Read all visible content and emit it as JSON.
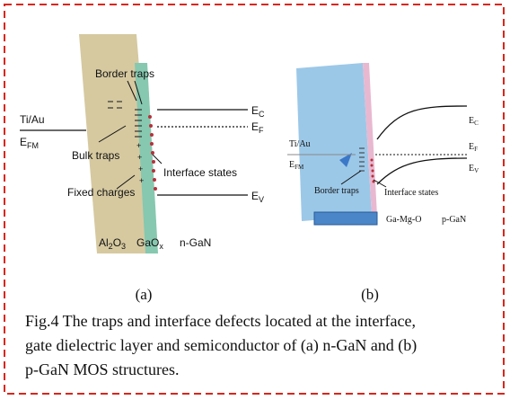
{
  "panel_a": {
    "border_traps": "Border traps",
    "ti_au": "Ti/Au",
    "e_fm": [
      "E",
      "FM"
    ],
    "bulk_traps": "Bulk traps",
    "e_c": [
      "E",
      "C"
    ],
    "e_f": [
      "E",
      "F"
    ],
    "interface_states": "Interface states",
    "fixed_charges": "Fixed charges",
    "e_v": [
      "E",
      "V"
    ],
    "al2o3": [
      "Al",
      "2",
      "O",
      "3"
    ],
    "gaox": [
      "GaO",
      "x"
    ],
    "n_gan": "n-GaN",
    "label": "(a)"
  },
  "panel_b": {
    "e_c": [
      "E",
      "C"
    ],
    "ti_au": "Ti/Au",
    "e_f": [
      "E",
      "F"
    ],
    "e_fm": [
      "E",
      "FM"
    ],
    "e_v": [
      "E",
      "V"
    ],
    "border_traps": "Border traps",
    "interface_states": "Interface states",
    "ga_mg_o": "Ga-Mg-O",
    "p_gan": "p-GaN",
    "label": "(b)"
  },
  "caption": [
    "Fig.4 The traps and interface defects located at the interface,",
    "gate dielectric layer and semiconductor of (a) n-GaN and (b)",
    "p-GaN MOS structures."
  ]
}
